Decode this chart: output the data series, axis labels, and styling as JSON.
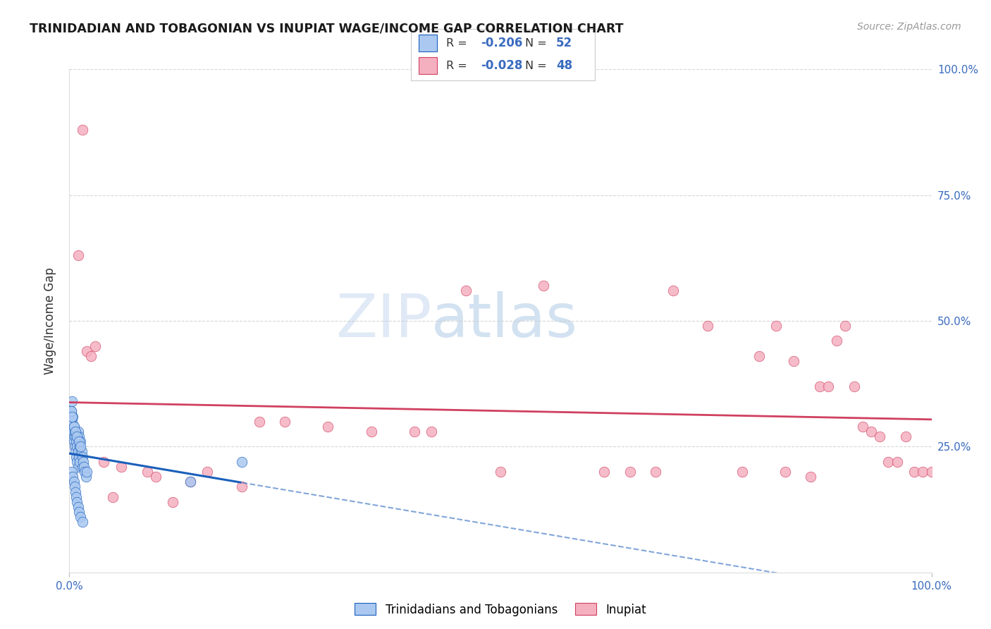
{
  "title": "TRINIDADIAN AND TOBAGONIAN VS INUPIAT WAGE/INCOME GAP CORRELATION CHART",
  "source": "Source: ZipAtlas.com",
  "ylabel": "Wage/Income Gap",
  "series_blue": {
    "name": "Trinidadians and Tobagonians",
    "R": -0.206,
    "N": 52,
    "color": "#aac8f0",
    "edge_color": "#1a5fbb",
    "x": [
      0.2,
      0.3,
      0.3,
      0.4,
      0.4,
      0.5,
      0.5,
      0.5,
      0.6,
      0.6,
      0.7,
      0.7,
      0.8,
      0.8,
      0.9,
      0.9,
      1.0,
      1.0,
      1.0,
      1.1,
      1.1,
      1.2,
      1.2,
      1.3,
      1.4,
      1.5,
      1.5,
      1.6,
      1.7,
      1.8,
      1.9,
      2.0,
      0.3,
      0.4,
      0.5,
      0.6,
      0.7,
      0.8,
      0.9,
      1.0,
      1.1,
      1.3,
      1.5,
      0.2,
      0.3,
      0.5,
      0.7,
      0.9,
      1.1,
      1.3,
      14.0,
      20.0
    ],
    "y": [
      32,
      30,
      34,
      28,
      31,
      27,
      29,
      26,
      28,
      25,
      27,
      24,
      26,
      23,
      25,
      22,
      24,
      28,
      21,
      27,
      23,
      25,
      22,
      26,
      24,
      23,
      21,
      22,
      21,
      20,
      19,
      20,
      20,
      19,
      18,
      17,
      16,
      15,
      14,
      13,
      12,
      11,
      10,
      32,
      31,
      29,
      28,
      27,
      26,
      25,
      18,
      22
    ]
  },
  "series_pink": {
    "name": "Inupiat",
    "R": -0.028,
    "N": 48,
    "color": "#f5b0c0",
    "edge_color": "#d04060",
    "x": [
      1.0,
      2.0,
      3.0,
      4.0,
      6.0,
      9.0,
      10.0,
      14.0,
      16.0,
      20.0,
      25.0,
      30.0,
      35.0,
      40.0,
      46.0,
      50.0,
      55.0,
      62.0,
      65.0,
      70.0,
      74.0,
      78.0,
      80.0,
      82.0,
      84.0,
      86.0,
      87.0,
      89.0,
      90.0,
      91.0,
      92.0,
      93.0,
      94.0,
      95.0,
      96.0,
      97.0,
      98.0,
      99.0,
      100.0,
      1.5,
      2.5,
      5.0,
      12.0,
      22.0,
      42.0,
      68.0,
      83.0,
      88.0
    ],
    "y": [
      63,
      44,
      45,
      22,
      21,
      20,
      19,
      18,
      20,
      17,
      30,
      29,
      28,
      28,
      56,
      20,
      57,
      20,
      20,
      56,
      49,
      20,
      43,
      49,
      42,
      19,
      37,
      46,
      49,
      37,
      29,
      28,
      27,
      22,
      22,
      27,
      20,
      20,
      20,
      88,
      43,
      15,
      14,
      30,
      28,
      20,
      20,
      37
    ]
  },
  "xlim": [
    0,
    100
  ],
  "ylim": [
    0,
    100
  ],
  "background_color": "#ffffff",
  "watermark_zip": "ZIP",
  "watermark_atlas": "atlas",
  "grid_color": "#cccccc",
  "grid_yticks": [
    25,
    50,
    75,
    100
  ]
}
